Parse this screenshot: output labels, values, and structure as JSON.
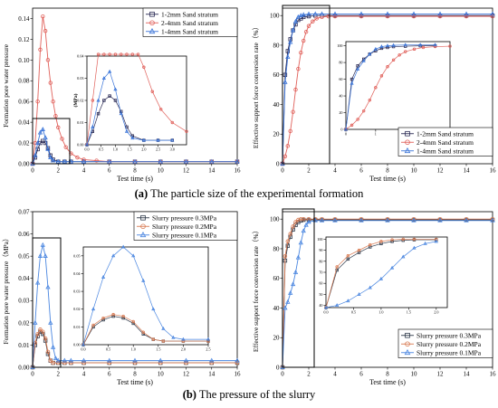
{
  "figure": {
    "caption_a_label": "(a)",
    "caption_a_text": " The particle size of the experimental formation",
    "caption_b_label": "(b)",
    "caption_b_text": " The pressure of the slurry"
  },
  "colors": {
    "series_dark": "#2b2b55",
    "series_red": "#e0605a",
    "series_blue": "#3a74d8",
    "series_slurry_dark": "#2f3a4a",
    "series_slurry_orange": "#d87a52",
    "series_slurry_blue": "#4a86e0"
  },
  "chart_data": [
    {
      "id": "a-left",
      "type": "line",
      "xlabel": "Test time (s)",
      "ylabel": "Formation pore water pressure",
      "xlim": [
        0,
        16
      ],
      "ylim": [
        0,
        0.15
      ],
      "x_ticks": [
        0,
        2,
        4,
        6,
        8,
        10,
        12,
        14,
        16
      ],
      "y_ticks": [
        0.0,
        0.02,
        0.04,
        0.06,
        0.08,
        0.1,
        0.12,
        0.14
      ],
      "y_tick_labels": [
        "0.00",
        "0.02",
        "0.04",
        "0.06",
        "0.08",
        "0.10",
        "0.12",
        "0.14"
      ],
      "legend_position": "top-right",
      "series": [
        {
          "name": "1-2mm Sand stratum",
          "marker": "square",
          "color_key": "series_dark",
          "x": [
            0,
            0.2,
            0.4,
            0.6,
            0.8,
            1.0,
            1.2,
            1.4,
            1.6,
            2.0,
            2.5,
            3.0,
            4.0,
            6.0,
            8.0,
            10.0,
            12.0,
            14.0,
            16.0
          ],
          "y": [
            0.0,
            0.006,
            0.014,
            0.02,
            0.022,
            0.02,
            0.015,
            0.008,
            0.004,
            0.002,
            0.002,
            0.002,
            0.002,
            0.002,
            0.002,
            0.002,
            0.002,
            0.002,
            0.002
          ]
        },
        {
          "name": "2-4mm Sand stratum",
          "marker": "circle",
          "color_key": "series_red",
          "x": [
            0,
            0.2,
            0.4,
            0.6,
            0.8,
            1.0,
            1.2,
            1.4,
            1.6,
            1.8,
            2.0,
            2.3,
            2.6,
            3.0,
            3.5,
            4.0,
            5.0,
            6.0,
            8.0,
            10.0,
            12.0,
            14.0,
            16.0
          ],
          "y": [
            0.0,
            0.02,
            0.06,
            0.11,
            0.142,
            0.128,
            0.1,
            0.078,
            0.06,
            0.046,
            0.035,
            0.024,
            0.016,
            0.01,
            0.006,
            0.004,
            0.003,
            0.002,
            0.002,
            0.002,
            0.002,
            0.002,
            0.002
          ]
        },
        {
          "name": "1-4mm Sand stratum",
          "marker": "triangle",
          "color_key": "series_blue",
          "x": [
            0,
            0.2,
            0.4,
            0.6,
            0.8,
            1.0,
            1.2,
            1.4,
            1.6,
            2.0,
            2.5,
            3.0,
            4.0,
            6.0,
            8.0,
            10.0,
            12.0,
            14.0,
            16.0
          ],
          "y": [
            0.0,
            0.008,
            0.02,
            0.03,
            0.033,
            0.025,
            0.014,
            0.006,
            0.003,
            0.002,
            0.002,
            0.002,
            0.002,
            0.002,
            0.002,
            0.002,
            0.002,
            0.002,
            0.002
          ]
        }
      ],
      "inset": {
        "ylabel": "(MPa)",
        "xlim": [
          0,
          3.5
        ],
        "ylim": [
          0,
          0.04
        ],
        "x_ticks": [
          0.0,
          0.5,
          1.0,
          1.5,
          2.0,
          2.5,
          3.0
        ],
        "x_tick_labels": [
          "0.0",
          "0.5",
          "1.0",
          "1.5",
          "2.0",
          "2.5",
          "3.0"
        ],
        "y_ticks": [
          0.0,
          0.01,
          0.02,
          0.03,
          0.04
        ],
        "y_tick_labels": [
          "0.00",
          "0.01",
          "0.02",
          "0.03",
          "0.04"
        ]
      }
    },
    {
      "id": "a-right",
      "type": "line",
      "xlabel": "Test time (s)",
      "ylabel": "Effective support force conversion rate（%）",
      "xlim": [
        0,
        16
      ],
      "ylim": [
        0,
        105
      ],
      "x_ticks": [
        0,
        2,
        4,
        6,
        8,
        10,
        12,
        14,
        16
      ],
      "y_ticks": [
        0,
        20,
        40,
        60,
        80,
        100
      ],
      "y_tick_labels": [
        "0",
        "20",
        "40",
        "60",
        "80",
        "100"
      ],
      "legend_position": "bottom-right",
      "series": [
        {
          "name": "1-2mm Sand stratum",
          "marker": "square",
          "color_key": "series_dark",
          "x": [
            0,
            0.2,
            0.4,
            0.6,
            0.8,
            1.0,
            1.2,
            1.4,
            1.6,
            2.0,
            2.5,
            3.0,
            4.0,
            6.0,
            8.0,
            10.0,
            12.0,
            14.0,
            16.0
          ],
          "y": [
            0,
            60,
            76,
            84,
            90,
            94,
            97,
            98,
            99,
            99.5,
            100,
            100,
            100,
            100,
            100,
            100,
            100,
            100,
            100
          ]
        },
        {
          "name": "2-4mm Sand stratum",
          "marker": "circle",
          "color_key": "series_red",
          "x": [
            0,
            0.2,
            0.4,
            0.6,
            0.8,
            1.0,
            1.2,
            1.4,
            1.6,
            1.8,
            2.0,
            2.3,
            2.6,
            3.0,
            3.5,
            4.0,
            6.0,
            8.0,
            10.0,
            12.0,
            14.0,
            16.0
          ],
          "y": [
            0,
            5,
            12,
            22,
            35,
            50,
            64,
            75,
            83,
            89,
            93,
            96,
            98,
            99,
            99.5,
            99.5,
            99.5,
            99.5,
            99.5,
            99.5,
            99.5,
            99.5
          ]
        },
        {
          "name": "1-4mm Sand stratum",
          "marker": "triangle",
          "color_key": "series_blue",
          "x": [
            0,
            0.2,
            0.4,
            0.6,
            0.8,
            1.0,
            1.2,
            1.4,
            1.6,
            2.0,
            2.5,
            3.0,
            4.0,
            6.0,
            8.0,
            10.0,
            12.0,
            14.0,
            16.0
          ],
          "y": [
            0,
            55,
            72,
            82,
            90,
            96,
            99,
            100,
            100.5,
            101,
            101,
            101,
            101,
            101,
            101,
            101,
            101,
            101,
            101
          ]
        }
      ],
      "inset": {
        "xlim": [
          0,
          3.5
        ],
        "ylim": [
          0,
          105
        ],
        "x_ticks": [
          0,
          1,
          2,
          3
        ],
        "x_tick_labels": [
          "0",
          "1",
          "2",
          "3"
        ],
        "y_ticks": [
          0,
          20,
          40,
          60,
          80,
          100
        ],
        "y_tick_labels": [
          "0",
          "20",
          "40",
          "60",
          "80",
          "100"
        ]
      }
    },
    {
      "id": "b-left",
      "type": "line",
      "xlabel": "Test time (s)",
      "ylabel": "Formation pore water pressure（MPa）",
      "xlim": [
        0,
        16
      ],
      "ylim": [
        0,
        0.07
      ],
      "x_ticks": [
        0,
        2,
        4,
        6,
        8,
        10,
        12,
        14,
        16
      ],
      "y_ticks": [
        0.0,
        0.01,
        0.02,
        0.03,
        0.04,
        0.05,
        0.06,
        0.07
      ],
      "y_tick_labels": [
        "0.00",
        "0.01",
        "0.02",
        "0.03",
        "0.04",
        "0.05",
        "0.06",
        "0.07"
      ],
      "legend_position": "top-right",
      "series": [
        {
          "name": "Slurry pressure 0.3MPa",
          "marker": "square",
          "color_key": "series_slurry_dark",
          "x": [
            0,
            0.2,
            0.4,
            0.6,
            0.8,
            1.0,
            1.2,
            1.4,
            1.6,
            2.0,
            2.5,
            3.0,
            4.0,
            6.0,
            8.0,
            10.0,
            12.0,
            14.0,
            16.0
          ],
          "y": [
            0.0,
            0.01,
            0.014,
            0.016,
            0.015,
            0.012,
            0.006,
            0.003,
            0.002,
            0.002,
            0.002,
            0.002,
            0.002,
            0.002,
            0.002,
            0.002,
            0.002,
            0.002,
            0.002
          ]
        },
        {
          "name": "Slurry pressure 0.2MPa",
          "marker": "circle",
          "color_key": "series_slurry_orange",
          "x": [
            0,
            0.2,
            0.4,
            0.6,
            0.8,
            1.0,
            1.2,
            1.4,
            1.6,
            2.0,
            2.5,
            3.0,
            4.0,
            6.0,
            8.0,
            10.0,
            12.0,
            14.0,
            16.0
          ],
          "y": [
            0.0,
            0.011,
            0.015,
            0.017,
            0.016,
            0.013,
            0.007,
            0.003,
            0.002,
            0.002,
            0.002,
            0.002,
            0.002,
            0.002,
            0.002,
            0.002,
            0.002,
            0.002,
            0.002
          ]
        },
        {
          "name": "Slurry pressure 0.1MPa",
          "marker": "triangle",
          "color_key": "series_slurry_blue",
          "x": [
            0,
            0.2,
            0.4,
            0.6,
            0.8,
            1.0,
            1.2,
            1.4,
            1.6,
            1.8,
            2.0,
            2.5,
            3.0,
            4.0,
            6.0,
            8.0,
            10.0,
            12.0,
            14.0,
            16.0
          ],
          "y": [
            0.0,
            0.02,
            0.038,
            0.05,
            0.055,
            0.05,
            0.036,
            0.02,
            0.009,
            0.004,
            0.003,
            0.003,
            0.003,
            0.003,
            0.003,
            0.003,
            0.003,
            0.003,
            0.003,
            0.003
          ]
        }
      ],
      "inset": {
        "xlim": [
          0,
          2.5
        ],
        "ylim": [
          0,
          0.055
        ],
        "x_ticks": [
          0.0,
          0.5,
          1.0,
          1.5,
          2.0,
          2.5
        ],
        "x_tick_labels": [
          "0.0",
          "0.5",
          "1.0",
          "1.5",
          "2.0",
          "2.5"
        ],
        "y_ticks": [
          0.0,
          0.01,
          0.02,
          0.03,
          0.04,
          0.05
        ],
        "y_tick_labels": [
          "0.00",
          "0.01",
          "0.02",
          "0.03",
          "0.04",
          "0.05"
        ]
      }
    },
    {
      "id": "b-right",
      "type": "line",
      "xlabel": "Test time (s)",
      "ylabel": "Effective support force conversion rate（%）",
      "xlim": [
        0,
        16
      ],
      "ylim": [
        0,
        105
      ],
      "x_ticks": [
        0,
        2,
        4,
        6,
        8,
        10,
        12,
        14,
        16
      ],
      "y_ticks": [
        0,
        20,
        40,
        60,
        80,
        100
      ],
      "y_tick_labels": [
        "0",
        "20",
        "40",
        "60",
        "80",
        "100"
      ],
      "legend_position": "bottom-right",
      "series": [
        {
          "name": "Slurry pressure 0.3MPa",
          "marker": "square",
          "color_key": "series_slurry_dark",
          "x": [
            0,
            0.2,
            0.4,
            0.6,
            0.8,
            1.0,
            1.2,
            1.4,
            1.6,
            2.0,
            2.5,
            3.0,
            4.0,
            6.0,
            8.0,
            10.0,
            12.0,
            14.0,
            16.0
          ],
          "y": [
            0,
            72,
            82,
            88,
            93,
            96,
            98,
            99,
            99.5,
            99.5,
            99.5,
            99.5,
            99.5,
            99.5,
            99.5,
            99.5,
            99.5,
            99.5,
            99.5
          ]
        },
        {
          "name": "Slurry pressure 0.2MPa",
          "marker": "circle",
          "color_key": "series_slurry_orange",
          "x": [
            0,
            0.2,
            0.4,
            0.6,
            0.8,
            1.0,
            1.2,
            1.4,
            1.6,
            2.0,
            2.5,
            3.0,
            4.0,
            6.0,
            8.0,
            10.0,
            12.0,
            14.0,
            16.0
          ],
          "y": [
            0,
            75,
            85,
            90,
            95,
            98,
            99.5,
            100,
            100,
            100,
            100,
            100,
            100,
            100,
            100,
            100,
            100,
            100,
            100
          ]
        },
        {
          "name": "Slurry pressure 0.1MPa",
          "marker": "triangle",
          "color_key": "series_slurry_blue",
          "x": [
            0,
            0.2,
            0.4,
            0.6,
            0.8,
            1.0,
            1.2,
            1.4,
            1.6,
            1.8,
            2.0,
            2.5,
            3.0,
            4.0,
            6.0,
            8.0,
            10.0,
            12.0,
            14.0,
            16.0
          ],
          "y": [
            0,
            40,
            44,
            50,
            56,
            64,
            74,
            84,
            92,
            96,
            98,
            99,
            99,
            99,
            99,
            99,
            99,
            99,
            99,
            99
          ]
        }
      ],
      "inset": {
        "xlim": [
          0,
          2.2
        ],
        "ylim": [
          38,
          102
        ],
        "x_ticks": [
          0.0,
          0.5,
          1.0,
          1.5,
          2.0
        ],
        "x_tick_labels": [
          "0.0",
          "0.5",
          "1.0",
          "1.5",
          "2.0"
        ],
        "y_ticks": [
          40,
          50,
          60,
          70,
          80,
          90,
          100
        ],
        "y_tick_labels": [
          "40",
          "50",
          "60",
          "70",
          "80",
          "90",
          "100"
        ]
      }
    }
  ]
}
